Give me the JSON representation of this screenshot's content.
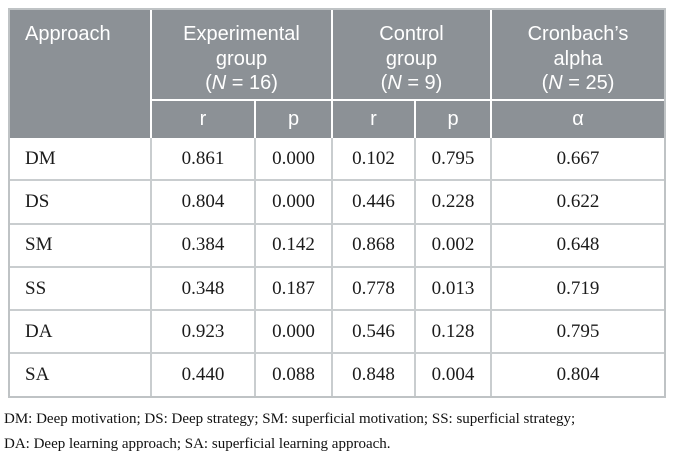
{
  "table": {
    "corner_header": "Approach",
    "group_headers": [
      {
        "line1": "Experimental",
        "line2": "group",
        "n_open": "(",
        "n_var": "N",
        "n_rest": " = 16)"
      },
      {
        "line1": "Control",
        "line2": "group",
        "n_open": "(",
        "n_var": "N",
        "n_rest": " = 9)"
      },
      {
        "line1": "Cronbach’s",
        "line2": "alpha",
        "n_open": "(",
        "n_var": "N",
        "n_rest": " = 25)"
      }
    ],
    "sub_headers": [
      "r",
      "p",
      "r",
      "p",
      "α"
    ],
    "rows": [
      {
        "approach": "DM",
        "values": [
          "0.861",
          "0.000",
          "0.102",
          "0.795",
          "0.667"
        ]
      },
      {
        "approach": "DS",
        "values": [
          "0.804",
          "0.000",
          "0.446",
          "0.228",
          "0.622"
        ]
      },
      {
        "approach": "SM",
        "values": [
          "0.384",
          "0.142",
          "0.868",
          "0.002",
          "0.648"
        ]
      },
      {
        "approach": "SS",
        "values": [
          "0.348",
          "0.187",
          "0.778",
          "0.013",
          "0.719"
        ]
      },
      {
        "approach": "DA",
        "values": [
          "0.923",
          "0.000",
          "0.546",
          "0.128",
          "0.795"
        ]
      },
      {
        "approach": "SA",
        "values": [
          "0.440",
          "0.088",
          "0.848",
          "0.004",
          "0.804"
        ]
      }
    ]
  },
  "footnote": {
    "line1": "DM: Deep motivation; DS: Deep strategy; SM: superficial motivation; SS: superficial strategy;",
    "line2": "DA: Deep learning approach; SA: superficial learning approach."
  },
  "colors": {
    "header_bg": "#8C9196",
    "header_text": "#FFFFFF",
    "body_text": "#1B1B1B",
    "grid_line": "#C9CDCF",
    "outer_border": "#BFC3C5"
  }
}
